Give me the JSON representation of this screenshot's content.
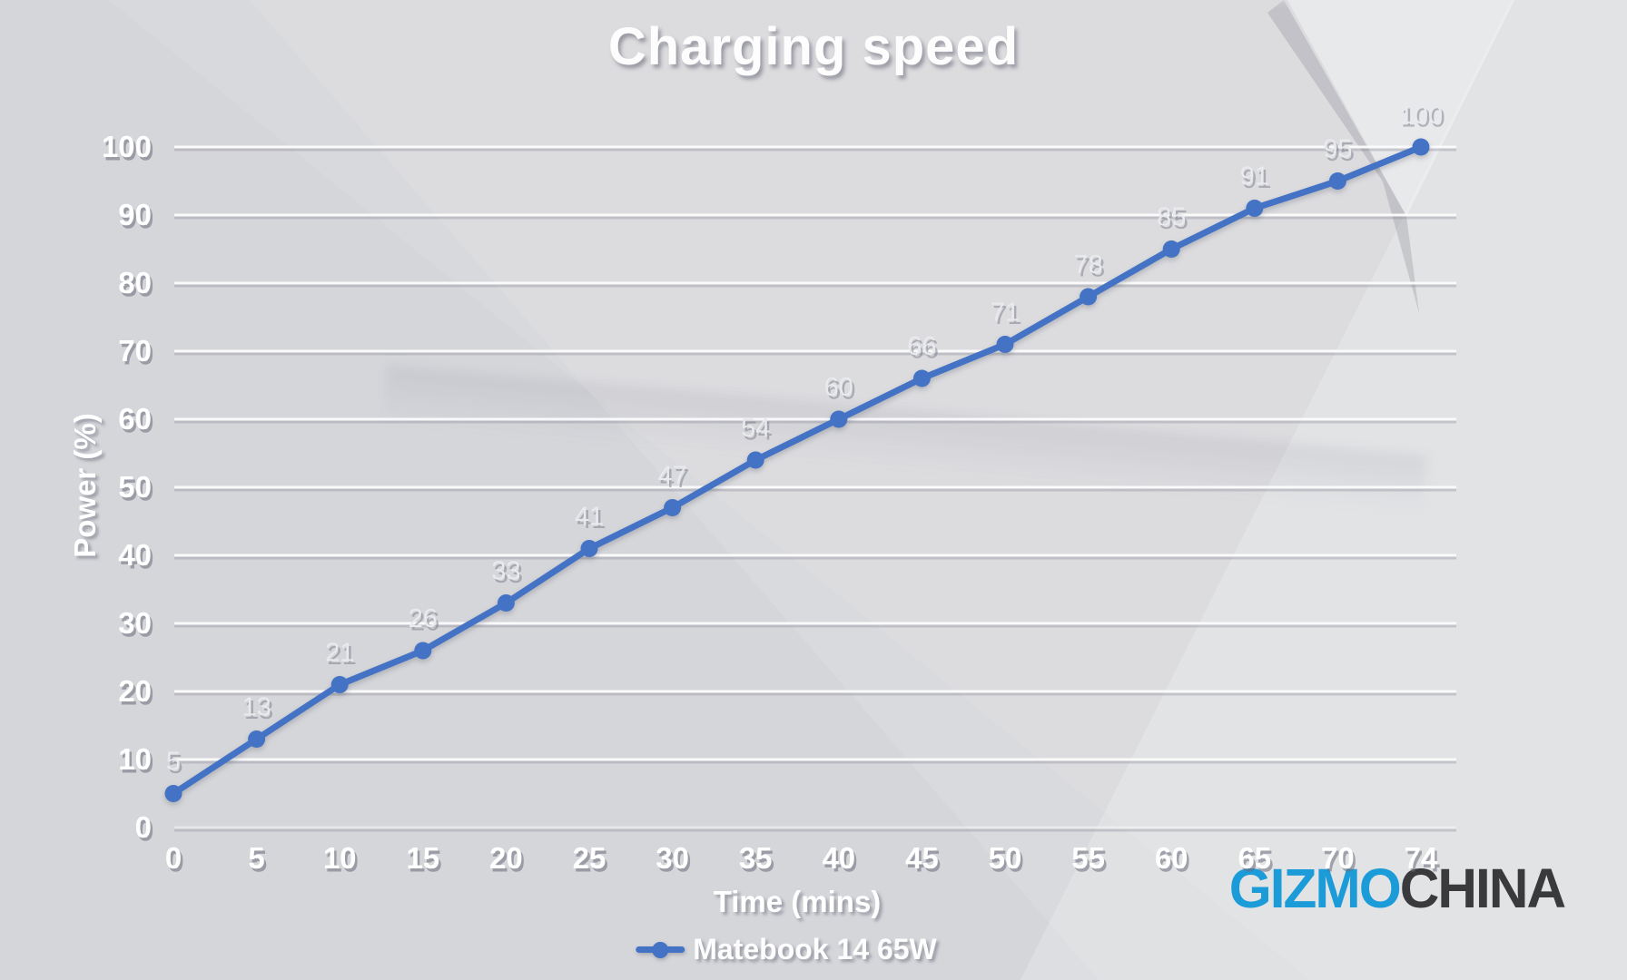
{
  "watermark": {
    "text_blue": "GIZMO",
    "text_dark": "CHINA",
    "color_blue": "#1b9cd9",
    "color_dark": "#3a3a3c"
  },
  "chart_data": {
    "type": "line",
    "title": "Charging speed",
    "xlabel": "Time (mins)",
    "ylabel": "Power (%)",
    "categories": [
      "0",
      "5",
      "10",
      "15",
      "20",
      "25",
      "30",
      "35",
      "40",
      "45",
      "50",
      "55",
      "60",
      "65",
      "70",
      "74"
    ],
    "series": [
      {
        "name": "Matebook 14 65W",
        "color": "#4472c4",
        "values": [
          5,
          13,
          21,
          26,
          33,
          41,
          47,
          54,
          60,
          66,
          71,
          78,
          85,
          91,
          95,
          100
        ]
      }
    ],
    "ylim": [
      0,
      100
    ],
    "y_tick_step": 10,
    "grid": true,
    "data_labels": true,
    "legend_position": "bottom",
    "grid_color": "#fcfcfd",
    "tick_label_color": "#ffffff",
    "data_label_color": "#e9eaee"
  }
}
